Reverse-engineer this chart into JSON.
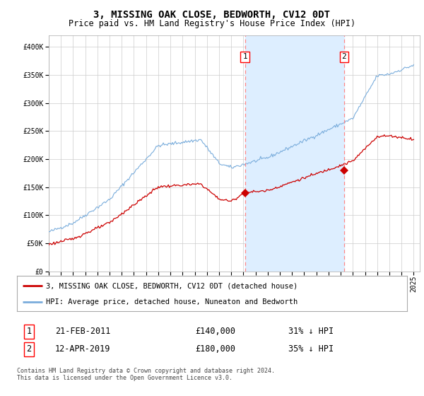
{
  "title": "3, MISSING OAK CLOSE, BEDWORTH, CV12 0DT",
  "subtitle": "Price paid vs. HM Land Registry's House Price Index (HPI)",
  "ylim": [
    0,
    420000
  ],
  "yticks": [
    0,
    50000,
    100000,
    150000,
    200000,
    250000,
    300000,
    350000,
    400000
  ],
  "x_start_year": 1995,
  "x_end_year": 2025,
  "hpi_color": "#7aaddc",
  "hpi_fill_color": "#ddeeff",
  "price_color": "#cc0000",
  "sale1_date_num": 2011.13,
  "sale1_price": 140000,
  "sale2_date_num": 2019.27,
  "sale2_price": 180000,
  "sale1_label": "1",
  "sale2_label": "2",
  "sale1_date_str": "21-FEB-2011",
  "sale1_price_str": "£140,000",
  "sale1_pct_str": "31% ↓ HPI",
  "sale2_date_str": "12-APR-2019",
  "sale2_price_str": "£180,000",
  "sale2_pct_str": "35% ↓ HPI",
  "legend_line1": "3, MISSING OAK CLOSE, BEDWORTH, CV12 0DT (detached house)",
  "legend_line2": "HPI: Average price, detached house, Nuneaton and Bedworth",
  "footnote": "Contains HM Land Registry data © Crown copyright and database right 2024.\nThis data is licensed under the Open Government Licence v3.0.",
  "background_color": "#ffffff",
  "plot_bg_color": "#ffffff",
  "grid_color": "#cccccc",
  "title_fontsize": 10,
  "subtitle_fontsize": 8.5,
  "tick_fontsize": 7
}
